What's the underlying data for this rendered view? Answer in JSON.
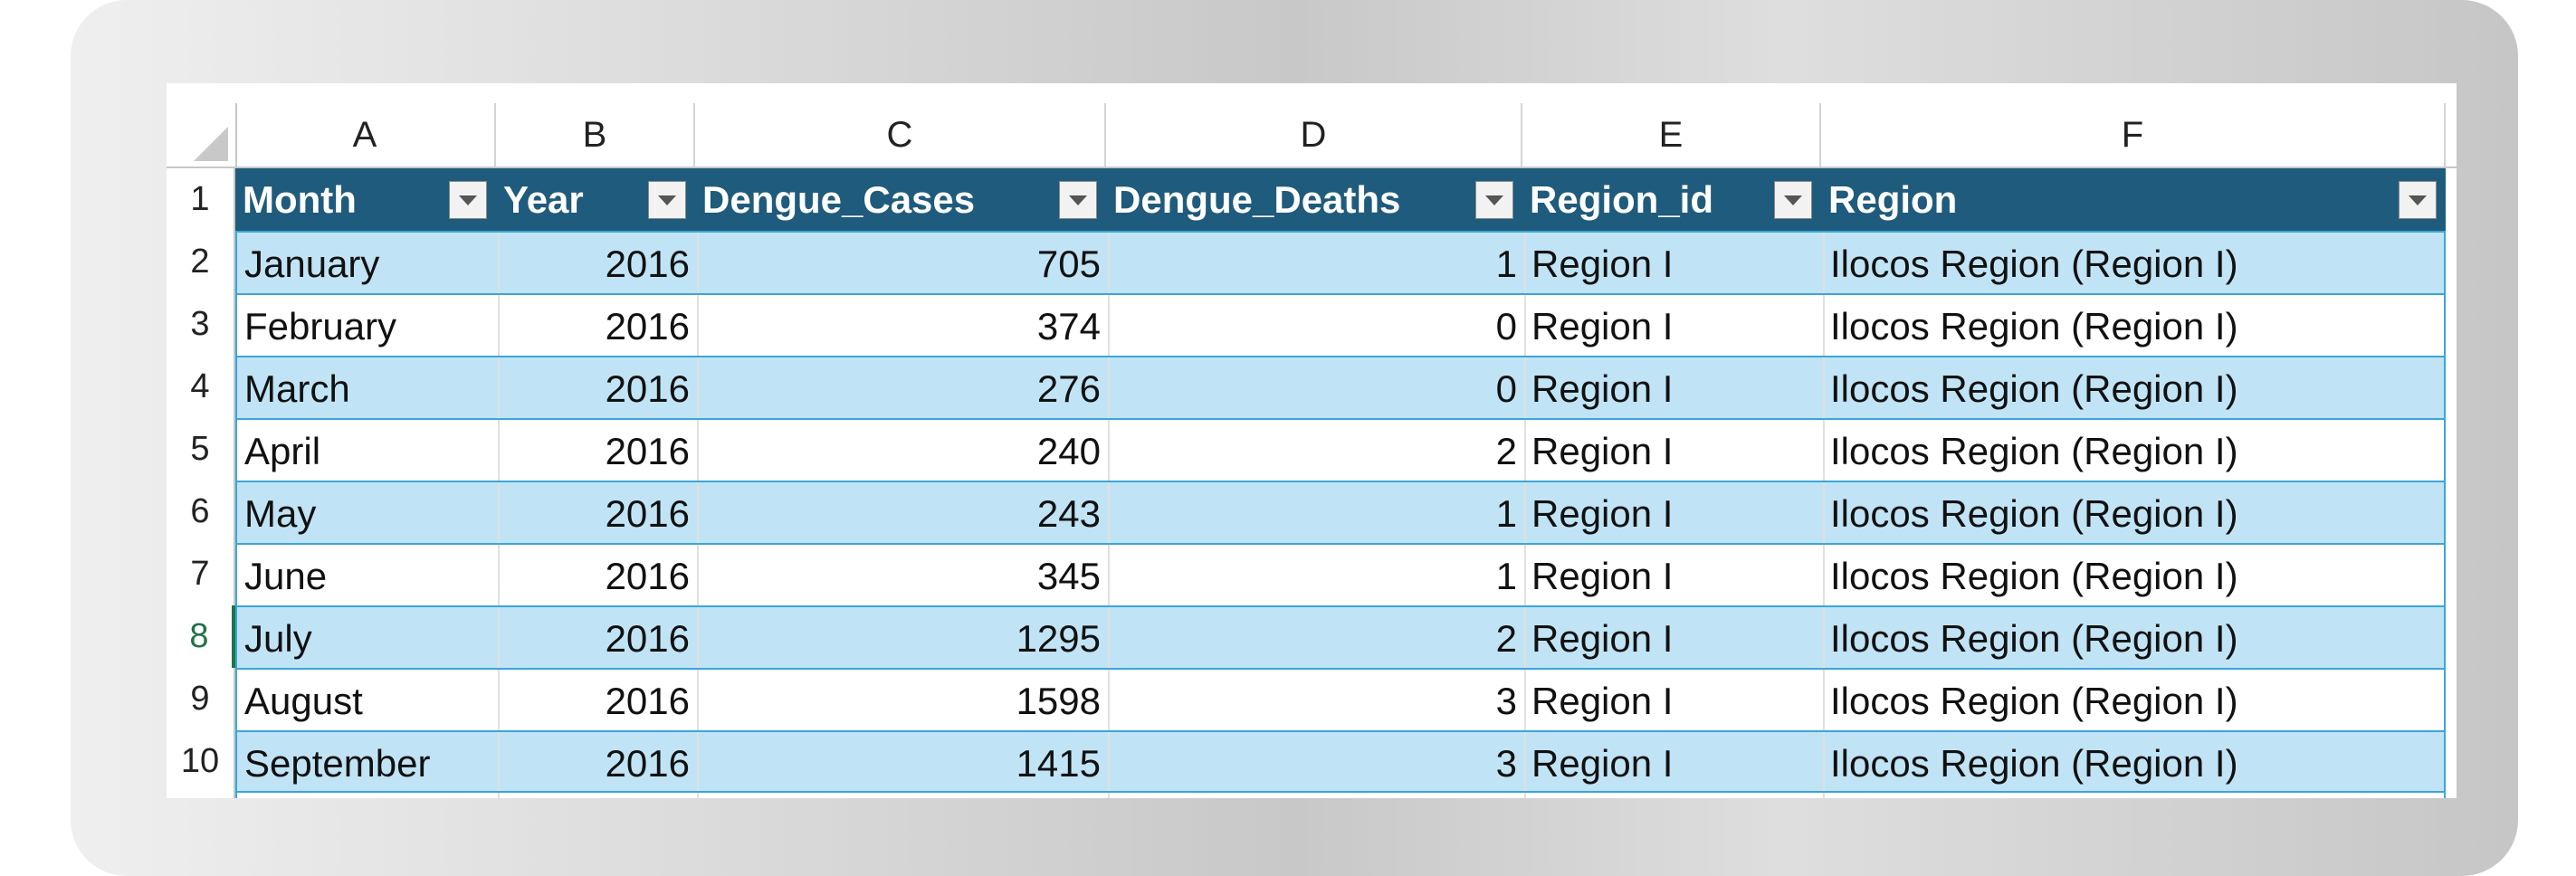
{
  "columns": [
    "A",
    "B",
    "C",
    "D",
    "E",
    "F"
  ],
  "table": {
    "headers": [
      "Month",
      "Year",
      "Dengue_Cases",
      "Dengue_Deaths",
      "Region_id",
      "Region"
    ],
    "rows": [
      [
        "January",
        "2016",
        "705",
        "1",
        "Region I",
        "Ilocos Region (Region I)"
      ],
      [
        "February",
        "2016",
        "374",
        "0",
        "Region I",
        "Ilocos Region (Region I)"
      ],
      [
        "March",
        "2016",
        "276",
        "0",
        "Region I",
        "Ilocos Region (Region I)"
      ],
      [
        "April",
        "2016",
        "240",
        "2",
        "Region I",
        "Ilocos Region (Region I)"
      ],
      [
        "May",
        "2016",
        "243",
        "1",
        "Region I",
        "Ilocos Region (Region I)"
      ],
      [
        "June",
        "2016",
        "345",
        "1",
        "Region I",
        "Ilocos Region (Region I)"
      ],
      [
        "July",
        "2016",
        "1295",
        "2",
        "Region I",
        "Ilocos Region (Region I)"
      ],
      [
        "August",
        "2016",
        "1598",
        "3",
        "Region I",
        "Ilocos Region (Region I)"
      ],
      [
        "September",
        "2016",
        "1415",
        "3",
        "Region I",
        "Ilocos Region (Region I)"
      ]
    ]
  },
  "row_numbers": [
    "1",
    "2",
    "3",
    "4",
    "5",
    "6",
    "7",
    "8",
    "9",
    "10"
  ],
  "active_row": "8",
  "colors": {
    "header_fill": "#1f5b7c",
    "band_fill": "#c0e4f5",
    "band_border": "#3aa6d8",
    "active_accent": "#217346"
  },
  "icons": {
    "filter": "filter-dropdown-icon",
    "select_all": "select-all-triangle-icon"
  }
}
